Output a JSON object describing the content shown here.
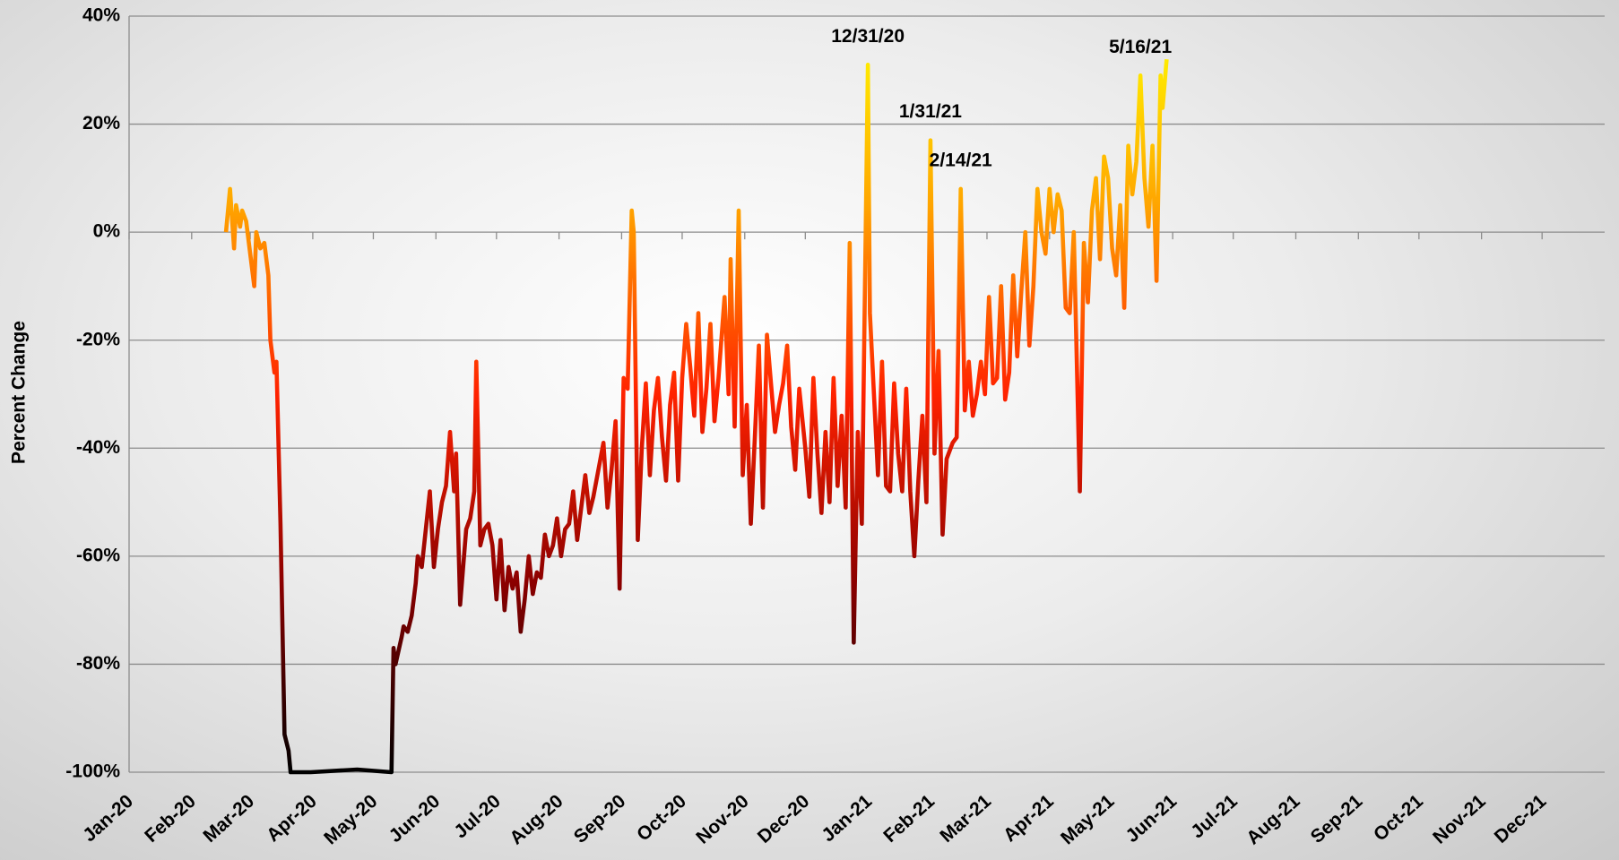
{
  "chart_data": {
    "type": "line",
    "y_label": "Percent Change",
    "colors": [
      "#ffff00",
      "#ffa500",
      "#ff2200",
      "#8b0000",
      "#000000"
    ],
    "grid": true,
    "xlim": [
      0,
      731
    ],
    "xticks": [
      {
        "value": 0,
        "label": "Jan-20"
      },
      {
        "value": 31,
        "label": "Feb-20"
      },
      {
        "value": 60,
        "label": "Mar-20"
      },
      {
        "value": 91,
        "label": "Apr-20"
      },
      {
        "value": 121,
        "label": "May-20"
      },
      {
        "value": 152,
        "label": "Jun-20"
      },
      {
        "value": 182,
        "label": "Jul-20"
      },
      {
        "value": 213,
        "label": "Aug-20"
      },
      {
        "value": 244,
        "label": "Sep-20"
      },
      {
        "value": 274,
        "label": "Oct-20"
      },
      {
        "value": 305,
        "label": "Nov-20"
      },
      {
        "value": 335,
        "label": "Dec-20"
      },
      {
        "value": 366,
        "label": "Jan-21"
      },
      {
        "value": 397,
        "label": "Feb-21"
      },
      {
        "value": 425,
        "label": "Mar-21"
      },
      {
        "value": 456,
        "label": "Apr-21"
      },
      {
        "value": 486,
        "label": "May-21"
      },
      {
        "value": 517,
        "label": "Jun-21"
      },
      {
        "value": 547,
        "label": "Jul-21"
      },
      {
        "value": 578,
        "label": "Aug-21"
      },
      {
        "value": 609,
        "label": "Sep-21"
      },
      {
        "value": 639,
        "label": "Oct-21"
      },
      {
        "value": 670,
        "label": "Nov-21"
      },
      {
        "value": 700,
        "label": "Dec-21"
      }
    ],
    "ylim": [
      -100,
      40
    ],
    "yticks": [
      {
        "value": -100,
        "label": "-100%"
      },
      {
        "value": -80,
        "label": "-80%"
      },
      {
        "value": -60,
        "label": "-60%"
      },
      {
        "value": -40,
        "label": "-40%"
      },
      {
        "value": -20,
        "label": "-20%"
      },
      {
        "value": 0,
        "label": "0%"
      },
      {
        "value": 20,
        "label": "20%"
      },
      {
        "value": 40,
        "label": "40%"
      }
    ],
    "x": [
      48,
      50,
      52,
      53,
      55,
      56,
      58,
      60,
      62,
      63,
      65,
      67,
      69,
      70,
      72,
      73,
      75,
      77,
      79,
      80,
      90,
      113,
      130,
      131,
      132,
      135,
      136,
      138,
      140,
      142,
      143,
      145,
      147,
      149,
      151,
      153,
      155,
      157,
      159,
      161,
      162,
      164,
      167,
      169,
      171,
      172,
      174,
      176,
      178,
      180,
      182,
      184,
      186,
      188,
      190,
      192,
      194,
      196,
      198,
      200,
      202,
      204,
      206,
      208,
      210,
      212,
      214,
      216,
      218,
      220,
      222,
      224,
      226,
      228,
      230,
      233,
      235,
      237,
      239,
      241,
      243,
      245,
      247,
      249,
      250,
      252,
      254,
      256,
      258,
      260,
      262,
      264,
      266,
      268,
      270,
      272,
      274,
      276,
      278,
      280,
      282,
      284,
      286,
      288,
      290,
      292,
      295,
      297,
      298,
      300,
      302,
      304,
      306,
      308,
      310,
      312,
      314,
      316,
      318,
      320,
      322,
      324,
      326,
      328,
      330,
      332,
      335,
      337,
      339,
      341,
      343,
      345,
      347,
      349,
      351,
      353,
      355,
      357,
      359,
      361,
      363,
      366,
      367,
      369,
      371,
      373,
      375,
      377,
      379,
      381,
      383,
      385,
      387,
      389,
      391,
      393,
      395,
      397,
      399,
      401,
      403,
      405,
      408,
      410,
      412,
      414,
      416,
      418,
      420,
      422,
      424,
      426,
      428,
      430,
      432,
      434,
      436,
      438,
      440,
      442,
      444,
      446,
      448,
      450,
      452,
      454,
      456,
      458,
      460,
      462,
      464,
      466,
      468,
      471,
      473,
      475,
      477,
      479,
      481,
      483,
      485,
      487,
      489,
      491,
      493,
      495,
      497,
      499,
      501,
      503,
      505,
      507,
      509,
      511,
      512,
      514
    ],
    "values": [
      0,
      8,
      -3,
      5,
      1,
      4,
      2,
      -4,
      -10,
      0,
      -3,
      -2,
      -8,
      -20,
      -26,
      -24,
      -54,
      -93,
      -96,
      -100,
      -100,
      -99.5,
      -100,
      -77,
      -80,
      -75,
      -73,
      -74,
      -71,
      -65,
      -60,
      -62,
      -55,
      -48,
      -62,
      -55,
      -50,
      -47,
      -37,
      -48,
      -41,
      -69,
      -55,
      -53,
      -48,
      -24,
      -58,
      -55,
      -54,
      -58,
      -68,
      -57,
      -70,
      -62,
      -66,
      -63,
      -74,
      -68,
      -60,
      -67,
      -63,
      -64,
      -56,
      -60,
      -58,
      -53,
      -60,
      -55,
      -54,
      -48,
      -57,
      -51,
      -45,
      -52,
      -49,
      -43,
      -39,
      -51,
      -44,
      -35,
      -66,
      -27,
      -29,
      4,
      0,
      -57,
      -40,
      -28,
      -45,
      -33,
      -27,
      -38,
      -46,
      -32,
      -26,
      -46,
      -27,
      -17,
      -25,
      -34,
      -15,
      -37,
      -29,
      -17,
      -35,
      -27,
      -12,
      -30,
      -5,
      -36,
      4,
      -45,
      -32,
      -54,
      -38,
      -21,
      -51,
      -19,
      -28,
      -37,
      -32,
      -28,
      -21,
      -36,
      -44,
      -29,
      -40,
      -49,
      -27,
      -41,
      -52,
      -37,
      -50,
      -27,
      -47,
      -34,
      -51,
      -2,
      -76,
      -37,
      -54,
      31,
      -15,
      -30,
      -45,
      -24,
      -47,
      -48,
      -28,
      -41,
      -48,
      -29,
      -48,
      -60,
      -46,
      -34,
      -50,
      17,
      -41,
      -22,
      -56,
      -42,
      -39,
      -38,
      8,
      -33,
      -24,
      -34,
      -30,
      -24,
      -30,
      -12,
      -28,
      -27,
      -10,
      -31,
      -26,
      -8,
      -23,
      -11,
      0,
      -21,
      -10,
      8,
      0,
      -4,
      8,
      0,
      7,
      4,
      -14,
      -15,
      0,
      -48,
      -2,
      -13,
      4,
      10,
      -5,
      14,
      10,
      -3,
      -8,
      5,
      -14,
      16,
      7,
      13,
      29,
      10,
      1,
      16,
      -9,
      29,
      23,
      32
    ],
    "annotations": [
      {
        "text": "12/31/20",
        "x": 366,
        "y": 31
      },
      {
        "text": "1/31/21",
        "x": 397,
        "y": 17
      },
      {
        "text": "2/14/21",
        "x": 412,
        "y": 8
      },
      {
        "text": "5/16/21",
        "x": 501,
        "y": 29
      }
    ]
  }
}
